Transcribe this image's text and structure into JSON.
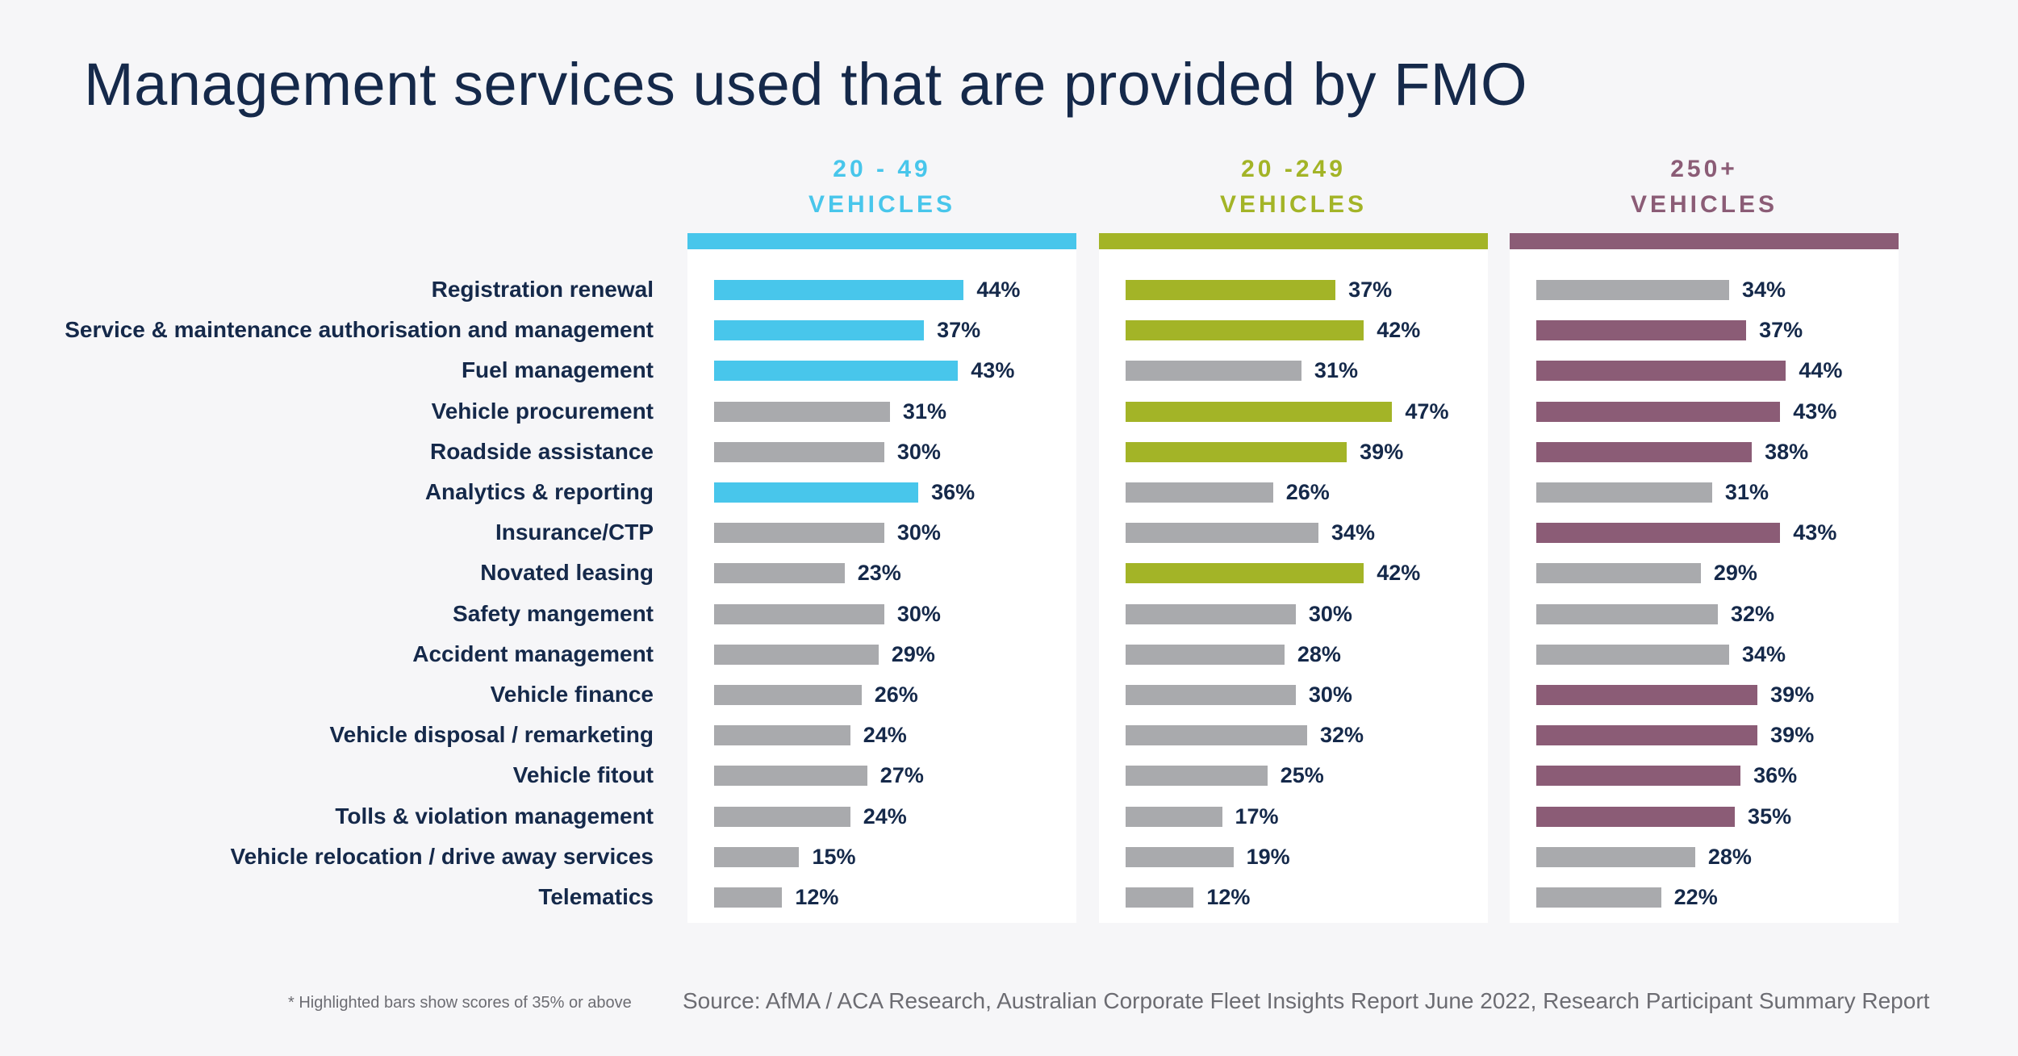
{
  "chart_data": {
    "type": "bar",
    "orientation": "horizontal",
    "title": "Management services used that are provided by FMO",
    "categories": [
      "Registration renewal",
      "Service & maintenance authorisation and management",
      "Fuel management",
      "Vehicle procurement",
      "Roadside assistance",
      "Analytics & reporting",
      "Insurance/CTP",
      "Novated leasing",
      "Safety mangement",
      "Accident management",
      "Vehicle finance",
      "Vehicle disposal / remarketing",
      "Vehicle fitout",
      "Tolls & violation management",
      "Vehicle relocation / drive away services",
      "Telematics"
    ],
    "series": [
      {
        "name_line1": "20 - 49",
        "name_line2": "VEHICLES",
        "color": "#48c6eb",
        "values": [
          44,
          37,
          43,
          31,
          30,
          36,
          30,
          23,
          30,
          29,
          26,
          24,
          27,
          24,
          15,
          12
        ]
      },
      {
        "name_line1": "20 -249",
        "name_line2": "VEHICLES",
        "color": "#a3b427",
        "values": [
          37,
          42,
          31,
          47,
          39,
          26,
          34,
          42,
          30,
          28,
          30,
          32,
          25,
          17,
          19,
          12
        ]
      },
      {
        "name_line1": "250+",
        "name_line2": "VEHICLES",
        "color": "#8b5c76",
        "values": [
          34,
          37,
          44,
          43,
          38,
          31,
          43,
          29,
          32,
          34,
          39,
          39,
          36,
          35,
          28,
          22
        ]
      }
    ],
    "value_suffix": "%",
    "highlight_threshold": 35,
    "base_color": "#a9aaad",
    "grid": false,
    "footnote": "* Highlighted bars show scores of 35% or above",
    "source": "Source: AfMA / ACA Research, Australian Corporate Fleet Insights Report June 2022, Research Participant Summary Report"
  }
}
